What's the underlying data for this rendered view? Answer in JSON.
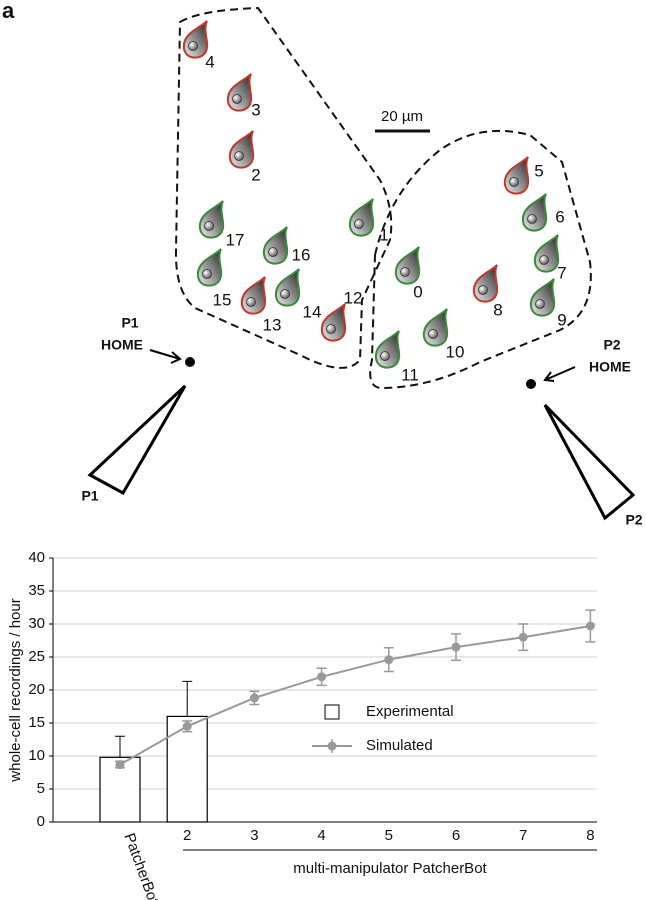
{
  "panel_label": "a",
  "scale_bar": "20 µm",
  "cells": [
    {
      "label": "0",
      "outline": "#3a8a3a"
    },
    {
      "label": "1",
      "outline": "#3a8a3a"
    },
    {
      "label": "2",
      "outline": "#c0392b"
    },
    {
      "label": "3",
      "outline": "#c0392b"
    },
    {
      "label": "4",
      "outline": "#c0392b"
    },
    {
      "label": "5",
      "outline": "#c0392b"
    },
    {
      "label": "6",
      "outline": "#3a8a3a"
    },
    {
      "label": "7",
      "outline": "#3a8a3a"
    },
    {
      "label": "8",
      "outline": "#c0392b"
    },
    {
      "label": "9",
      "outline": "#3a8a3a"
    },
    {
      "label": "10",
      "outline": "#3a8a3a"
    },
    {
      "label": "11",
      "outline": "#3a8a3a"
    },
    {
      "label": "12",
      "outline": "#c0392b"
    },
    {
      "label": "13",
      "outline": "#c0392b"
    },
    {
      "label": "14",
      "outline": "#3a8a3a"
    },
    {
      "label": "15",
      "outline": "#3a8a3a"
    },
    {
      "label": "16",
      "outline": "#3a8a3a"
    },
    {
      "label": "17",
      "outline": "#3a8a3a"
    }
  ],
  "pipettes": [
    {
      "name": "P1",
      "home": "HOME"
    },
    {
      "name": "P2",
      "home": "HOME"
    }
  ],
  "chart_data": {
    "type": "bar",
    "y_label": "whole-cell recordings / hour",
    "x_group_label": "multi-manipulator PatcherBot",
    "categories": [
      "PatcherBot",
      "2",
      "3",
      "4",
      "5",
      "6",
      "7",
      "8"
    ],
    "series": [
      {
        "name": "Experimental",
        "type": "bar",
        "color": "#ffffff",
        "values": [
          9.8,
          16,
          null,
          null,
          null,
          null,
          null,
          null
        ],
        "errors": [
          3.2,
          5.3,
          null,
          null,
          null,
          null,
          null,
          null
        ]
      },
      {
        "name": "Simulated",
        "type": "line",
        "color": "#999999",
        "values": [
          8.7,
          14.5,
          18.8,
          22,
          24.6,
          26.5,
          28,
          29.7
        ],
        "errors": [
          0.5,
          0.8,
          1,
          1.3,
          1.8,
          2,
          2,
          2.4
        ]
      }
    ],
    "ylim": [
      0,
      40
    ],
    "yticks": [
      0,
      5,
      10,
      15,
      20,
      25,
      30,
      35,
      40
    ],
    "grid": true
  }
}
